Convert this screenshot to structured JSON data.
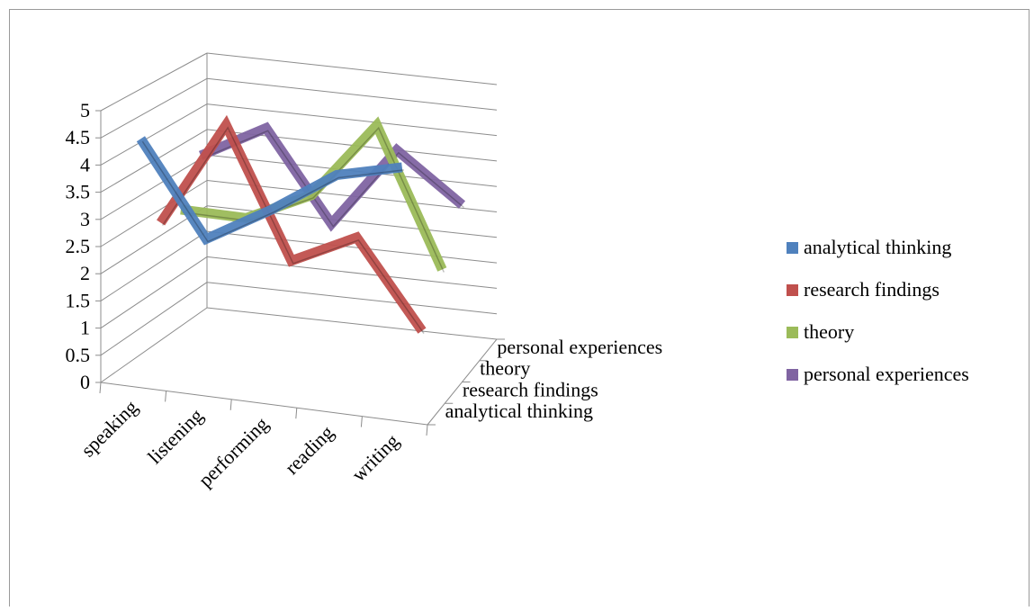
{
  "chart_data": {
    "type": "line",
    "title": "",
    "xlabel": "",
    "ylabel": "",
    "categories": [
      "speaking",
      "listening",
      "performing",
      "reading",
      "writing"
    ],
    "y_ticks": [
      "0",
      "0.5",
      "1",
      "1.5",
      "2",
      "2.5",
      "3",
      "3.5",
      "4",
      "4.5",
      "5"
    ],
    "ylim": [
      0,
      5
    ],
    "grid": true,
    "three_d": true,
    "legend_position": "right",
    "series": [
      {
        "name": "analytical thinking",
        "values": [
          4.5,
          2.8,
          3.5,
          4.3,
          4.6
        ],
        "color": "#4f81bd"
      },
      {
        "name": "research findings",
        "values": [
          2.8,
          4.8,
          2.4,
          3.0,
          1.4
        ],
        "color": "#c0504d"
      },
      {
        "name": "theory",
        "values": [
          2.9,
          2.9,
          3.5,
          5.0,
          2.4
        ],
        "color": "#9bbb59"
      },
      {
        "name": "personal experiences",
        "values": [
          3.8,
          4.5,
          2.8,
          4.4,
          3.5
        ],
        "color": "#8064a2"
      }
    ],
    "depth_labels": [
      "personal experiences",
      "theory",
      "research findings",
      "analytical thinking"
    ]
  }
}
